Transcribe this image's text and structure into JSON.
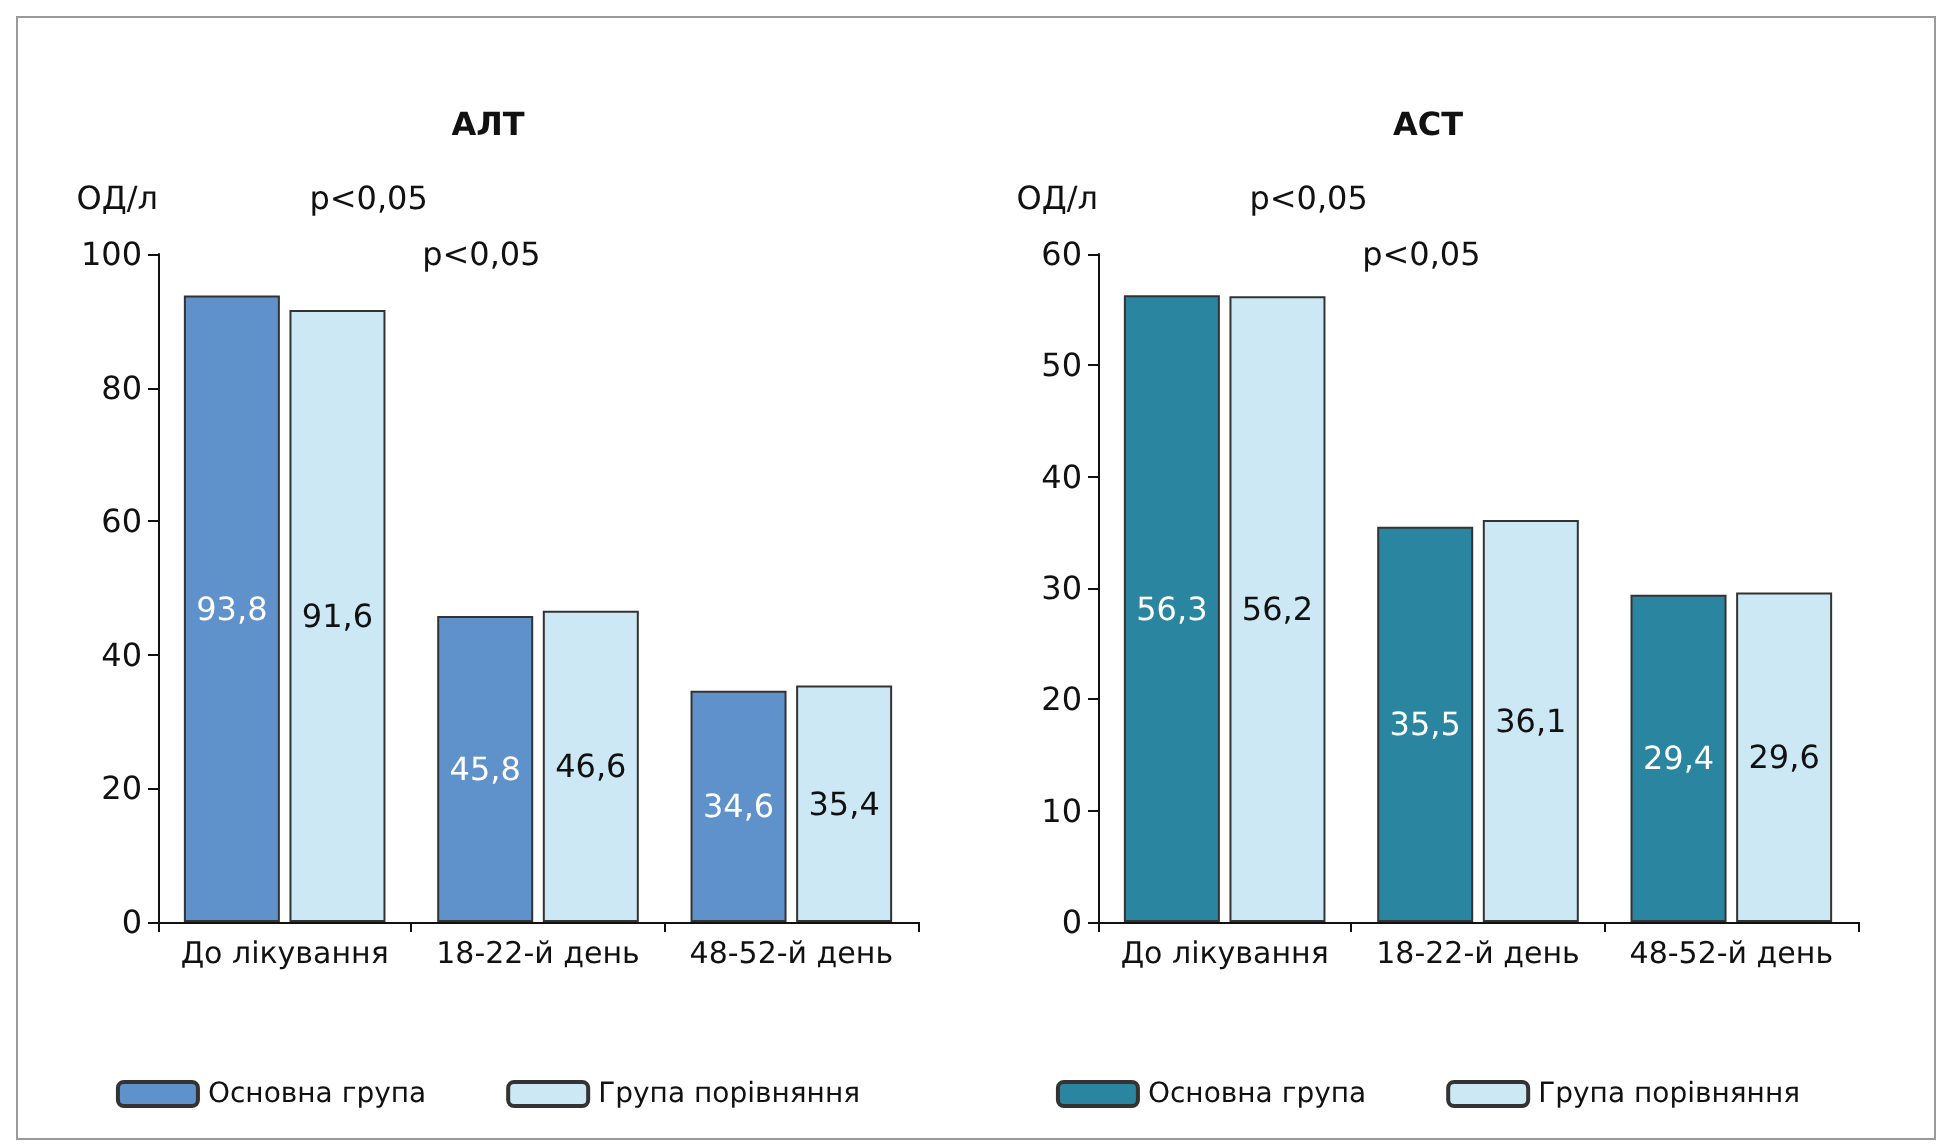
{
  "chart_data": [
    {
      "type": "bar",
      "title": "АЛТ",
      "ylabel": "ОД/л",
      "categories": [
        "До лікування",
        "18-22-й день",
        "48-52-й день"
      ],
      "series": [
        {
          "name": "Основна група",
          "color": "#5f91cb",
          "values": [
            93.8,
            45.8,
            34.6
          ],
          "value_labels": [
            "93,8",
            "45,8",
            "34,6"
          ]
        },
        {
          "name": "Група порівняння",
          "color": "#cce8f4",
          "values": [
            91.6,
            46.6,
            35.4
          ],
          "value_labels": [
            "91,6",
            "46,6",
            "35,4"
          ]
        }
      ],
      "ylim": [
        0,
        100
      ],
      "yticks": [
        0,
        20,
        40,
        60,
        80,
        100
      ],
      "grid": false,
      "legend": "bottom",
      "annotations": [
        "p<0,05",
        "p<0,05"
      ]
    },
    {
      "type": "bar",
      "title": "АСТ",
      "ylabel": "ОД/л",
      "categories": [
        "До лікування",
        "18-22-й день",
        "48-52-й день"
      ],
      "series": [
        {
          "name": "Основна група",
          "color": "#2a86a0",
          "values": [
            56.3,
            35.5,
            29.4
          ],
          "value_labels": [
            "56,3",
            "35,5",
            "29,4"
          ]
        },
        {
          "name": "Група порівняння",
          "color": "#cce8f4",
          "values": [
            56.2,
            36.1,
            29.6
          ],
          "value_labels": [
            "56,2",
            "36,1",
            "29,6"
          ]
        }
      ],
      "ylim": [
        0,
        60
      ],
      "yticks": [
        0,
        10,
        20,
        30,
        40,
        50,
        60
      ],
      "grid": false,
      "legend": "bottom",
      "annotations": [
        "p<0,05",
        "p<0,05"
      ]
    }
  ]
}
